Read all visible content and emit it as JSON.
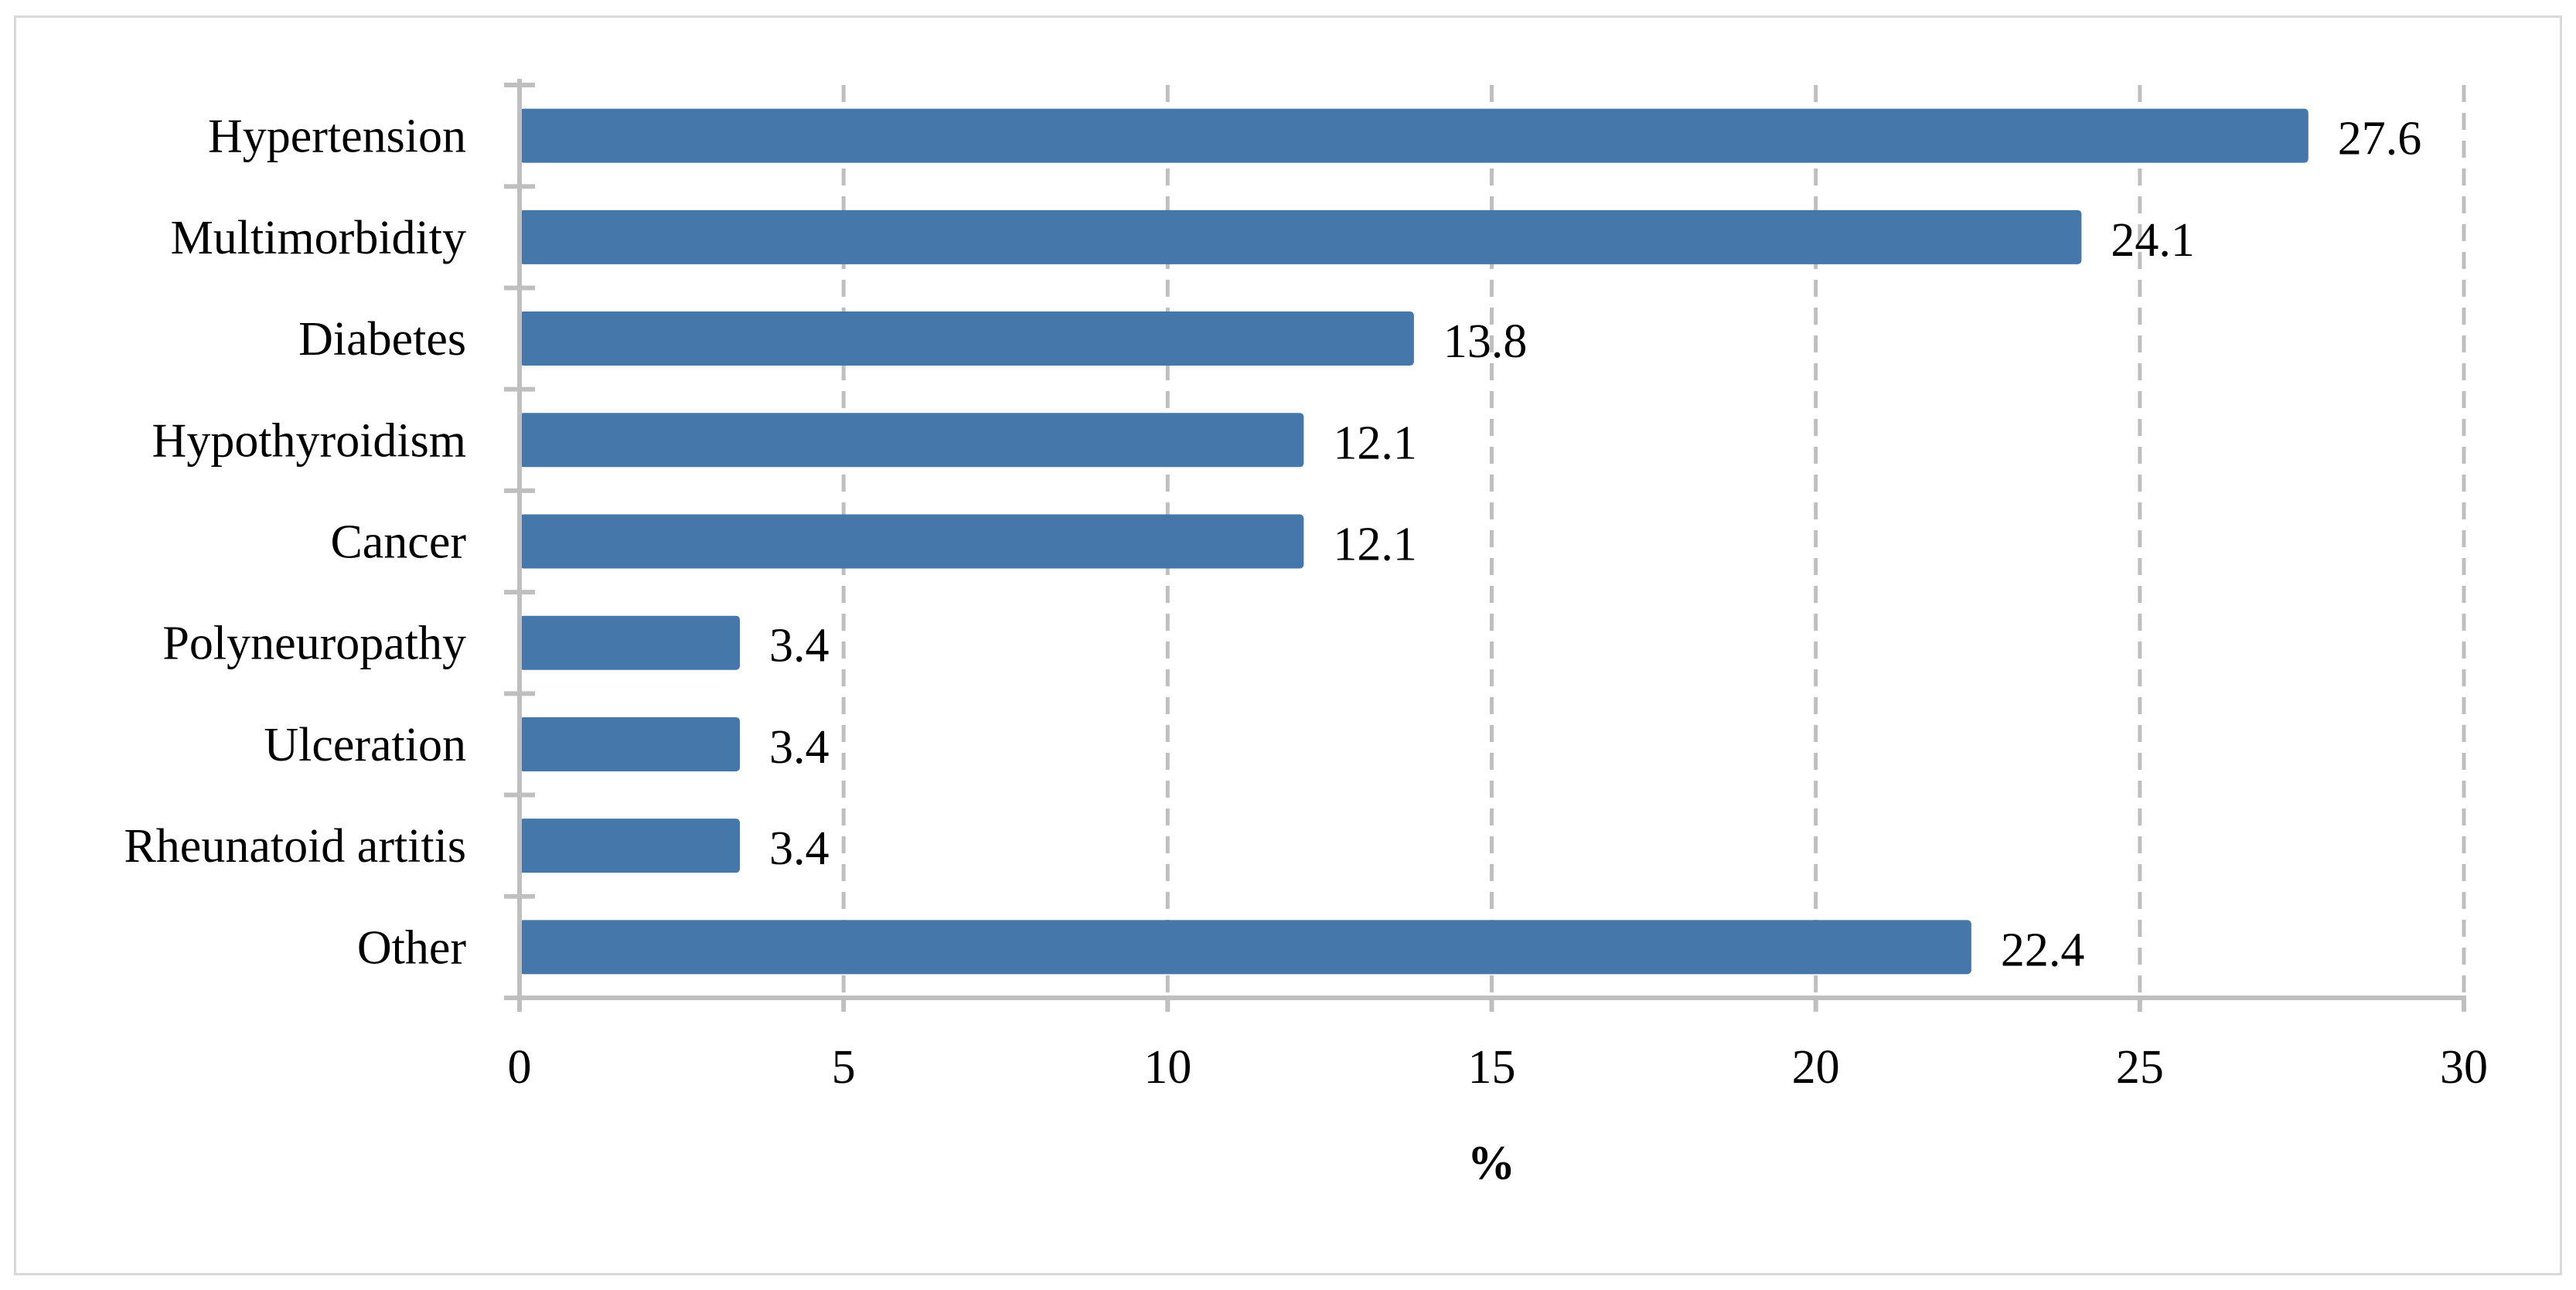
{
  "chart_data": {
    "type": "bar",
    "orientation": "horizontal",
    "categories": [
      "Hypertension",
      "Multimorbidity",
      "Diabetes",
      "Hypothyroidism",
      "Cancer",
      "Polyneuropathy",
      "Ulceration",
      "Rheunatoid artitis",
      "Other"
    ],
    "values": [
      27.6,
      24.1,
      13.8,
      12.1,
      12.1,
      3.4,
      3.4,
      3.4,
      22.4
    ],
    "value_labels": [
      "27.6",
      "24.1",
      "13.8",
      "12.1",
      "12.1",
      "3.4",
      "3.4",
      "3.4",
      "22.4"
    ],
    "title": "",
    "xlabel": "%",
    "ylabel": "",
    "xlim": [
      0,
      30
    ],
    "xticks": [
      0,
      5,
      10,
      15,
      20,
      25,
      30
    ],
    "xtick_labels": [
      "0",
      "5",
      "10",
      "15",
      "20",
      "25",
      "30"
    ],
    "grid": "vertical dashed",
    "legend": "none",
    "colors": {
      "bar": "#4677aa",
      "grid": "#bfbfbf",
      "frame": "#d9d9d9"
    }
  }
}
